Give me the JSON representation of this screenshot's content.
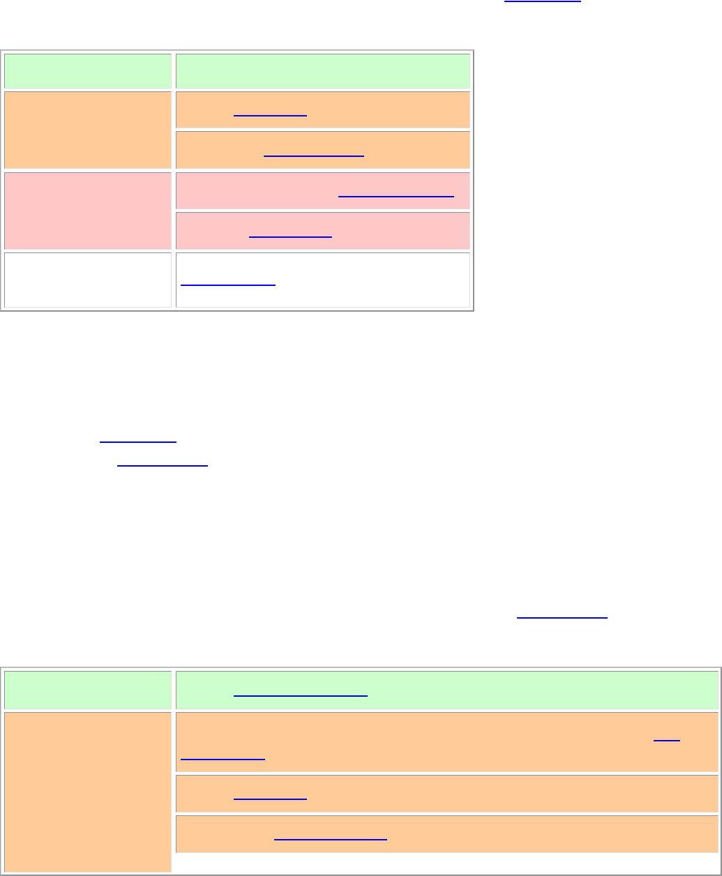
{
  "palette": {
    "header": "#ccffcc",
    "warn": "#ffcc99",
    "alert": "#ffc8c8",
    "plain": "#ffffff",
    "link": "#0000ee",
    "frame": "#a0a0a0"
  }
}
